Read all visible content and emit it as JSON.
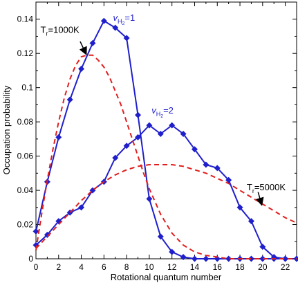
{
  "chart_data": {
    "type": "line",
    "title": "",
    "xlabel": "Rotational quantum number",
    "ylabel": "Occupation probability",
    "xlim": [
      0,
      23
    ],
    "ylim": [
      0,
      0.15
    ],
    "xticks": [
      0,
      2,
      4,
      6,
      8,
      10,
      12,
      14,
      16,
      18,
      20,
      22
    ],
    "yticks": [
      0,
      0.02,
      0.04,
      0.06,
      0.08,
      0.1,
      0.12,
      0.14
    ],
    "xtick_labels": [
      "0",
      "2",
      "4",
      "6",
      "8",
      "10",
      "12",
      "14",
      "16",
      "18",
      "20",
      "22"
    ],
    "ytick_labels": [
      "0",
      "0.02",
      "0.04",
      "0.06",
      "0.08",
      "0.1",
      "0.12",
      "0.14"
    ],
    "grid": false,
    "series": [
      {
        "name": "v_H2=1",
        "style": "solid-diamond",
        "color": "#1f1fcc",
        "x": [
          0,
          1,
          2,
          3,
          4,
          5,
          6,
          7,
          8,
          9,
          10,
          11,
          12,
          13,
          14,
          15,
          16,
          17,
          18,
          19,
          20,
          21,
          22,
          23
        ],
        "y": [
          0.016,
          0.045,
          0.071,
          0.093,
          0.111,
          0.126,
          0.139,
          0.135,
          0.129,
          0.084,
          0.035,
          0.013,
          0.004,
          0.001,
          0,
          0,
          0,
          0,
          0,
          0,
          0,
          0,
          0,
          0
        ]
      },
      {
        "name": "v_H2=2",
        "style": "solid-diamond",
        "color": "#1f1fcc",
        "x": [
          0,
          1,
          2,
          3,
          4,
          5,
          6,
          7,
          8,
          9,
          10,
          11,
          12,
          13,
          14,
          15,
          16,
          17,
          18,
          19,
          20,
          21,
          22,
          23
        ],
        "y": [
          0.008,
          0.014,
          0.022,
          0.027,
          0.03,
          0.04,
          0.045,
          0.059,
          0.066,
          0.071,
          0.078,
          0.073,
          0.078,
          0.073,
          0.064,
          0.055,
          0.053,
          0.046,
          0.03,
          0.022,
          0.007,
          0.001,
          0,
          0
        ]
      },
      {
        "name": "Tr=1000K",
        "style": "dashed",
        "color": "#e01e1e",
        "x": [
          0,
          0.5,
          1,
          1.5,
          2,
          2.5,
          3,
          3.5,
          4,
          4.5,
          5,
          5.5,
          6,
          6.5,
          7,
          7.5,
          8,
          8.5,
          9,
          9.5,
          10,
          11,
          12,
          13,
          14,
          15,
          16,
          17,
          18,
          19,
          20,
          21,
          22,
          23
        ],
        "y": [
          0.005,
          0.026,
          0.046,
          0.064,
          0.08,
          0.094,
          0.105,
          0.113,
          0.118,
          0.119,
          0.119,
          0.116,
          0.112,
          0.106,
          0.098,
          0.09,
          0.08,
          0.07,
          0.06,
          0.05,
          0.041,
          0.026,
          0.015,
          0.008,
          0.004,
          0.002,
          0.001,
          0,
          0,
          0,
          0,
          0,
          0,
          0
        ]
      },
      {
        "name": "Tr=5000K",
        "style": "dashed",
        "color": "#e01e1e",
        "x": [
          0,
          1,
          2,
          3,
          4,
          5,
          6,
          7,
          8,
          9,
          10,
          11,
          12,
          13,
          14,
          15,
          16,
          17,
          18,
          19,
          20,
          21,
          22,
          23
        ],
        "y": [
          0.006,
          0.013,
          0.02,
          0.027,
          0.034,
          0.04,
          0.045,
          0.049,
          0.052,
          0.054,
          0.055,
          0.055,
          0.055,
          0.054,
          0.052,
          0.05,
          0.047,
          0.044,
          0.04,
          0.036,
          0.032,
          0.028,
          0.024,
          0.021
        ]
      }
    ],
    "annotations": {
      "v1": {
        "prefix": "v",
        "sub": "H",
        "subsub": "2",
        "suffix": "=1",
        "color": "#1f1fcc",
        "at": [
          6.8,
          0.139
        ]
      },
      "v2": {
        "prefix": "v",
        "sub": "H",
        "subsub": "2",
        "suffix": "=2",
        "color": "#1f1fcc",
        "at": [
          10.2,
          0.085
        ]
      },
      "t1": {
        "prefix": "T",
        "sub": "r",
        "suffix": "=1000K",
        "color": "#000000",
        "at": [
          0.4,
          0.132
        ],
        "arrow_from": [
          3.9,
          0.127
        ],
        "arrow_to": [
          4.4,
          0.12
        ]
      },
      "t2": {
        "prefix": "T",
        "sub": "r",
        "suffix": "=5000K",
        "color": "#000000",
        "at": [
          18.6,
          0.04
        ],
        "arrow_from": [
          19.6,
          0.039
        ],
        "arrow_to": [
          19.9,
          0.032
        ]
      }
    }
  }
}
